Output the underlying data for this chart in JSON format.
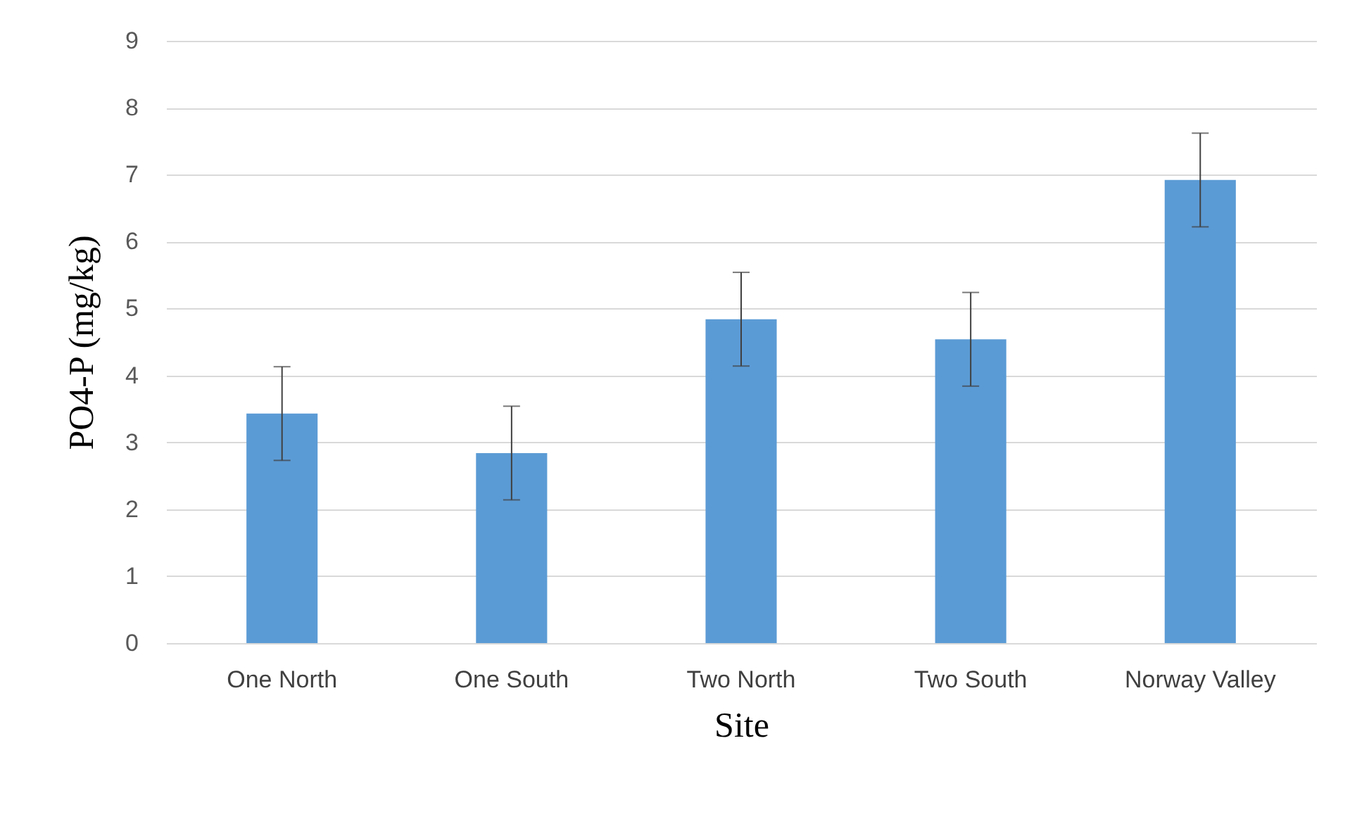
{
  "chart_data": {
    "type": "bar",
    "xlabel": "Site",
    "ylabel": "PO4-P (mg/kg)",
    "categories": [
      "One North",
      "One South",
      "Two North",
      "Two South",
      "Norway Valley"
    ],
    "values": [
      3.43,
      2.84,
      4.84,
      4.54,
      6.92
    ],
    "errors": [
      0.7,
      0.7,
      0.7,
      0.7,
      0.7
    ],
    "color": "#5b9bd5",
    "ylim": [
      0,
      9
    ],
    "yticks": [
      0,
      1,
      2,
      3,
      4,
      5,
      6,
      7,
      8,
      9
    ],
    "grid": "y"
  }
}
